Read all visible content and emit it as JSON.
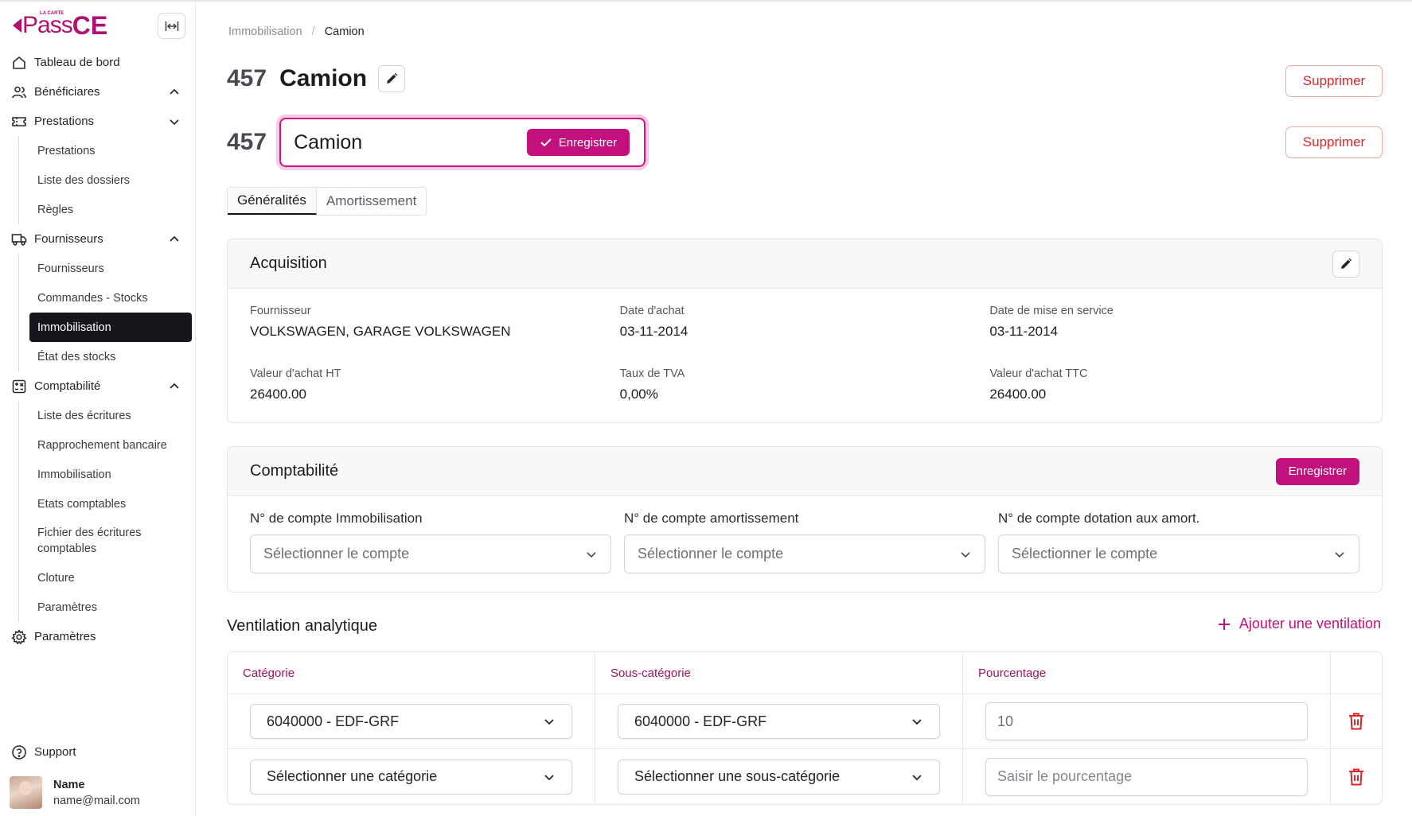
{
  "sidebar": {
    "logo": {
      "small": "LA CARTE",
      "pass": "Pass",
      "ce": "CE"
    },
    "items": [
      {
        "label": "Tableau de bord",
        "icon": "home-icon"
      },
      {
        "label": "Bénéficiares",
        "icon": "users-icon"
      },
      {
        "label": "Prestations",
        "icon": "ticket-icon"
      },
      {
        "label": "Fournisseurs",
        "icon": "truck-icon"
      },
      {
        "label": "Comptabilité",
        "icon": "calculator-icon"
      },
      {
        "label": "Paramètres",
        "icon": "gear-icon"
      }
    ],
    "prestations_sub": [
      "Prestations",
      "Liste des dossiers",
      "Règles"
    ],
    "fournisseurs_sub": [
      "Fournisseurs",
      "Commandes - Stocks",
      "Immobilisation",
      "État des stocks"
    ],
    "comptabilite_sub": [
      "Liste des écritures",
      "Rapprochement bancaire",
      "Immobilisation",
      "Etats comptables",
      "Fichier des écritures comptables",
      "Cloture",
      "Paramètres"
    ],
    "support": "Support",
    "user": {
      "name": "Name",
      "email": "name@mail.com"
    }
  },
  "breadcrumb": {
    "parent": "Immobilisation",
    "sep": "/",
    "current": "Camion"
  },
  "header": {
    "number": "457",
    "title": "Camion",
    "delete_label": "Supprimer",
    "edit_value": "Camion",
    "save_label": "Enregistrer"
  },
  "tabs": [
    "Généralités",
    "Amortissement"
  ],
  "acquisition": {
    "title": "Acquisition",
    "fields": [
      {
        "label": "Fournisseur",
        "value": "VOLKSWAGEN, GARAGE VOLKSWAGEN"
      },
      {
        "label": "Date d'achat",
        "value": "03-11-2014"
      },
      {
        "label": "Date de mise en service",
        "value": "03-11-2014"
      },
      {
        "label": "Valeur d'achat HT",
        "value": "26400.00"
      },
      {
        "label": "Taux de TVA",
        "value": "0,00%"
      },
      {
        "label": "Valeur d'achat TTC",
        "value": "26400.00"
      }
    ]
  },
  "comptabilite": {
    "title": "Comptabilité",
    "save_label": "Enregistrer",
    "fields": [
      {
        "label": "N° de compte Immobilisation",
        "placeholder": "Sélectionner le compte"
      },
      {
        "label": "N° de compte amortissement",
        "placeholder": "Sélectionner le compte"
      },
      {
        "label": "N° de compte dotation aux amort.",
        "placeholder": "Sélectionner le compte"
      }
    ]
  },
  "ventilation": {
    "title": "Ventilation analytique",
    "add_label": "Ajouter une ventilation",
    "columns": [
      "Catégorie",
      "Sous-catégorie",
      "Pourcentage"
    ],
    "rows": [
      {
        "categorie": "6040000 - EDF-GRF",
        "sous_categorie": "6040000 - EDF-GRF",
        "pourcentage": "10"
      },
      {
        "categorie": "Sélectionner une catégorie",
        "sous_categorie": "Sélectionner une sous-catégorie",
        "pourcentage": "Saisir le pourcentage"
      }
    ]
  },
  "colors": {
    "accent": "#c2107d",
    "danger": "#d8262a",
    "active_nav": "#16171c"
  }
}
